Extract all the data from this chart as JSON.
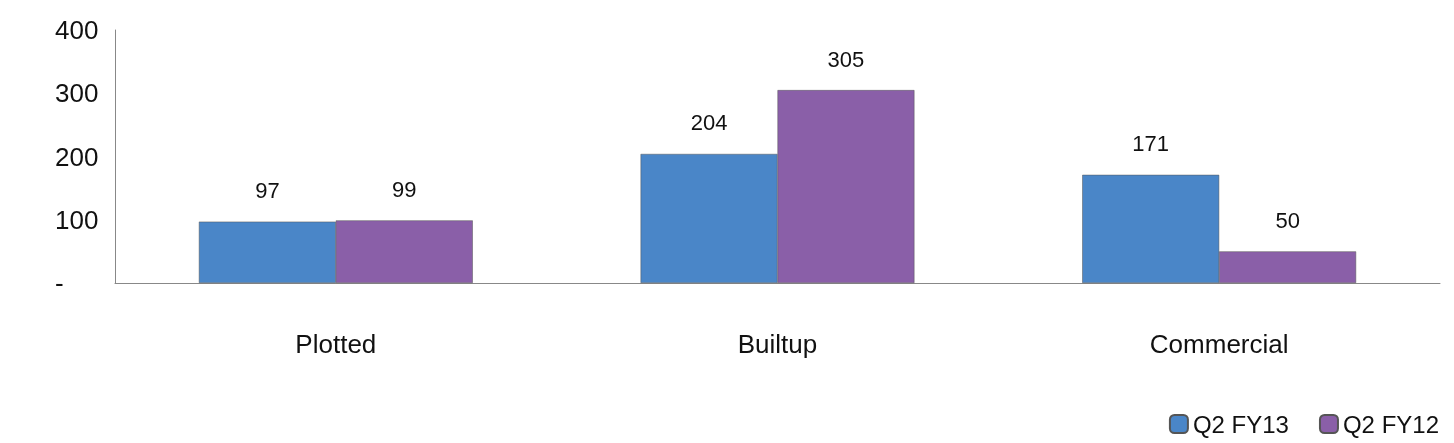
{
  "chart_data": {
    "type": "bar",
    "categories": [
      "Plotted",
      "Builtup",
      "Commercial"
    ],
    "series": [
      {
        "name": "Q2 FY13",
        "color": "#4a86c8",
        "values": [
          97,
          204,
          171
        ]
      },
      {
        "name": "Q2 FY12",
        "color": "#8a5fa8",
        "values": [
          99,
          305,
          50
        ]
      }
    ],
    "ylim": [
      0,
      400
    ],
    "yticks": [
      {
        "value": 0,
        "label": "-"
      },
      100,
      200,
      300,
      400
    ],
    "data_labels": true,
    "grid": false,
    "legend": "bottom right"
  }
}
